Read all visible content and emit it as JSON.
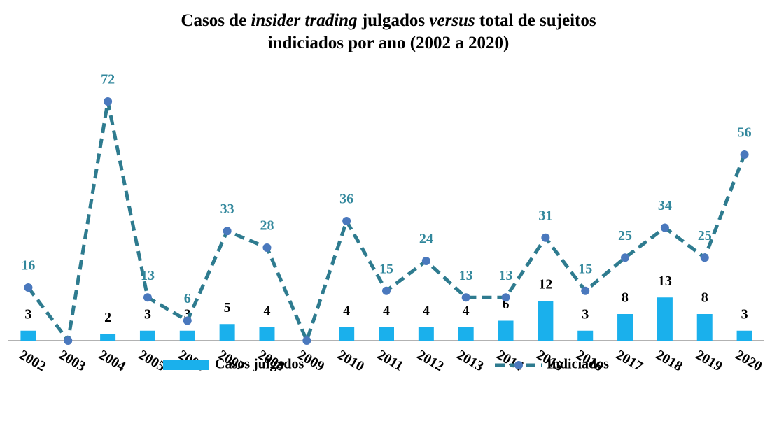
{
  "chart_data": {
    "type": "bar-line",
    "title": [
      [
        {
          "text": "Casos de "
        },
        {
          "text": "insider trading",
          "italic": true
        },
        {
          "text": " julgados "
        },
        {
          "text": "versus",
          "italic": true
        },
        {
          "text": " total de sujeitos"
        }
      ],
      [
        {
          "text": "indiciados por ano (2002 a 2020)"
        }
      ]
    ],
    "categories": [
      "2002",
      "2003",
      "2004",
      "2005",
      "2006",
      "2007",
      "2008",
      "2009",
      "2010",
      "2011",
      "2012",
      "2013",
      "2014",
      "2015",
      "2016",
      "2017",
      "2018",
      "2019",
      "2020"
    ],
    "ylim": [
      0,
      80
    ],
    "series": [
      {
        "name": "Casos julgados",
        "type": "bar",
        "color": "#1ab0ec",
        "label_color": "#000000",
        "values": [
          3,
          null,
          2,
          3,
          3,
          5,
          4,
          null,
          4,
          4,
          4,
          4,
          6,
          12,
          3,
          8,
          13,
          8,
          3
        ]
      },
      {
        "name": "Indiciados",
        "type": "line",
        "color": "#2e7b8f",
        "marker_color": "#4a78bd",
        "label_color": "#31879c",
        "dashed": true,
        "values": [
          16,
          0,
          72,
          13,
          6,
          33,
          28,
          0,
          36,
          15,
          24,
          13,
          13,
          31,
          15,
          25,
          34,
          25,
          56
        ],
        "value_labels": [
          16,
          null,
          72,
          13,
          6,
          33,
          28,
          null,
          36,
          15,
          24,
          13,
          13,
          31,
          15,
          25,
          34,
          25,
          56
        ]
      }
    ]
  }
}
